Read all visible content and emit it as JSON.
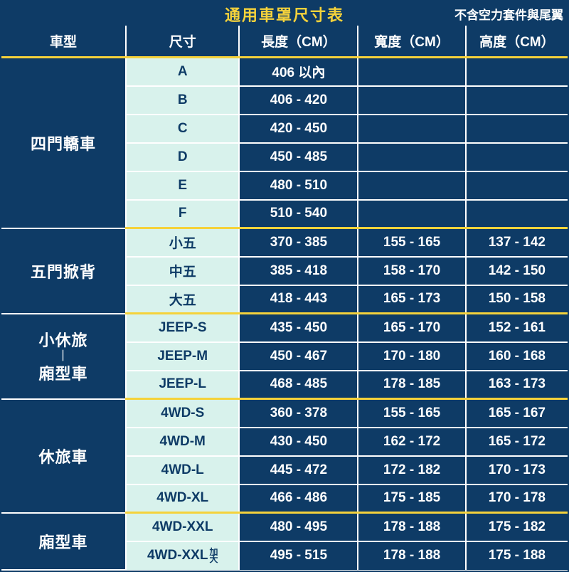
{
  "colors": {
    "navy": "#0e3b66",
    "yellow": "#f5d23b",
    "mint": "#d8f2ec",
    "white": "#ffffff"
  },
  "title": "通用車罩尺寸表",
  "subtitle": "不含空力套件與尾翼",
  "columns": [
    "車型",
    "尺寸",
    "長度（CM）",
    "寬度（CM）",
    "高度（CM）"
  ],
  "groups": [
    {
      "category": "四門轎車",
      "rows": [
        {
          "size": "A",
          "length": "406 以內",
          "width": "",
          "height": ""
        },
        {
          "size": "B",
          "length": "406 - 420",
          "width": "",
          "height": ""
        },
        {
          "size": "C",
          "length": "420 - 450",
          "width": "",
          "height": ""
        },
        {
          "size": "D",
          "length": "450 - 485",
          "width": "",
          "height": ""
        },
        {
          "size": "E",
          "length": "480 - 510",
          "width": "",
          "height": ""
        },
        {
          "size": "F",
          "length": "510 - 540",
          "width": "",
          "height": ""
        }
      ]
    },
    {
      "category": "五門掀背",
      "rows": [
        {
          "size": "小五",
          "length": "370 - 385",
          "width": "155 - 165",
          "height": "137 - 142"
        },
        {
          "size": "中五",
          "length": "385 - 418",
          "width": "158 - 170",
          "height": "142 - 150"
        },
        {
          "size": "大五",
          "length": "418 - 443",
          "width": "165 - 173",
          "height": "150 - 158"
        }
      ]
    },
    {
      "category": "小休旅\n｜\n廂型車",
      "rows": [
        {
          "size": "JEEP-S",
          "length": "435 - 450",
          "width": "165 - 170",
          "height": "152 - 161"
        },
        {
          "size": "JEEP-M",
          "length": "450 - 467",
          "width": "170 - 180",
          "height": "160 - 168"
        },
        {
          "size": "JEEP-L",
          "length": "468 - 485",
          "width": "178 - 185",
          "height": "163 - 173"
        }
      ]
    },
    {
      "category": "休旅車",
      "rows": [
        {
          "size": "4WD-S",
          "length": "360 - 378",
          "width": "155 - 165",
          "height": "165 - 167"
        },
        {
          "size": "4WD-M",
          "length": "430 - 450",
          "width": "162 - 172",
          "height": "165 - 172"
        },
        {
          "size": "4WD-L",
          "length": "445 - 472",
          "width": "172 - 182",
          "height": "170 - 173"
        },
        {
          "size": "4WD-XL",
          "length": "466 - 486",
          "width": "175 - 185",
          "height": "170 - 178"
        }
      ]
    },
    {
      "category": "廂型車",
      "rows": [
        {
          "size": "4WD-XXL",
          "length": "480 - 495",
          "width": "178 - 188",
          "height": "175 - 182"
        },
        {
          "size": "4WD-XXL",
          "size_suffix": "加\n大",
          "length": "495 - 515",
          "width": "178 - 188",
          "height": "175 - 188"
        }
      ]
    }
  ]
}
